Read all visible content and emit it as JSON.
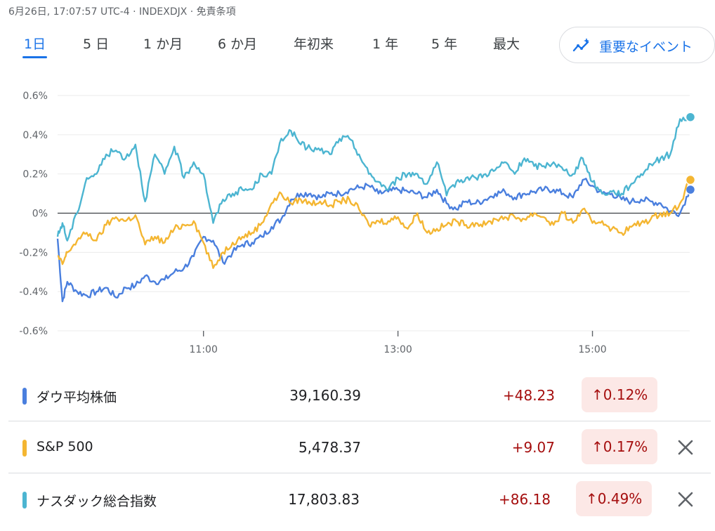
{
  "header": {
    "text": "6月26日, 17:07:57 UTC-4 · INDEXDJX · 免責条項"
  },
  "tabs": [
    {
      "label": "1日",
      "active": true
    },
    {
      "label": "5 日"
    },
    {
      "label": "1 か月"
    },
    {
      "label": "6 か月"
    },
    {
      "label": "年初来"
    },
    {
      "label": "1 年"
    },
    {
      "label": "5 年"
    },
    {
      "label": "最大"
    }
  ],
  "events_button": {
    "label": "重要なイベント",
    "icon": "sparkle-trend-icon"
  },
  "chart_data": {
    "type": "line",
    "y_ticks": [
      "0.6%",
      "0.4%",
      "0.2%",
      "0%",
      "-0.2%",
      "-0.4%",
      "-0.6%"
    ],
    "y_tick_values": [
      0.6,
      0.4,
      0.2,
      0,
      -0.2,
      -0.4,
      -0.6
    ],
    "x_ticks": [
      "11:00",
      "13:00",
      "15:00"
    ],
    "x_tick_values": [
      11,
      13,
      15
    ],
    "xlim": [
      9.5,
      16.0
    ],
    "ylim": [
      -0.6,
      0.6
    ],
    "grid": true,
    "series": [
      {
        "name": "ダウ平均株価",
        "color": "#4a7fde",
        "x": [
          9.5,
          9.55,
          9.6,
          9.7,
          9.8,
          9.9,
          10.0,
          10.1,
          10.2,
          10.3,
          10.4,
          10.5,
          10.6,
          10.7,
          10.8,
          10.9,
          11.0,
          11.1,
          11.2,
          11.3,
          11.4,
          11.5,
          11.6,
          11.7,
          11.8,
          11.9,
          12.0,
          12.1,
          12.2,
          12.3,
          12.4,
          12.5,
          12.6,
          12.7,
          12.8,
          12.9,
          13.0,
          13.1,
          13.2,
          13.3,
          13.4,
          13.5,
          13.6,
          13.7,
          13.8,
          13.9,
          14.0,
          14.1,
          14.2,
          14.3,
          14.4,
          14.5,
          14.6,
          14.7,
          14.8,
          14.9,
          15.0,
          15.1,
          15.2,
          15.3,
          15.4,
          15.5,
          15.6,
          15.7,
          15.8,
          15.9,
          16.0
        ],
        "y": [
          -0.13,
          -0.45,
          -0.35,
          -0.4,
          -0.42,
          -0.4,
          -0.38,
          -0.43,
          -0.38,
          -0.37,
          -0.32,
          -0.35,
          -0.34,
          -0.3,
          -0.28,
          -0.22,
          -0.12,
          -0.14,
          -0.25,
          -0.2,
          -0.16,
          -0.15,
          -0.12,
          -0.07,
          -0.03,
          0.07,
          0.1,
          0.1,
          0.08,
          0.1,
          0.1,
          0.12,
          0.13,
          0.14,
          0.1,
          0.11,
          0.12,
          0.11,
          0.1,
          0.08,
          0.12,
          0.05,
          0.02,
          0.06,
          0.05,
          0.07,
          0.1,
          0.11,
          0.08,
          0.1,
          0.11,
          0.12,
          0.12,
          0.1,
          0.08,
          0.17,
          0.14,
          0.1,
          0.1,
          0.07,
          0.06,
          0.07,
          0.06,
          0.05,
          0.01,
          0.0,
          0.12
        ]
      },
      {
        "name": "S&P 500",
        "color": "#f4b632",
        "x": [
          9.5,
          9.55,
          9.6,
          9.7,
          9.8,
          9.9,
          10.0,
          10.1,
          10.2,
          10.3,
          10.4,
          10.5,
          10.6,
          10.7,
          10.8,
          10.9,
          11.0,
          11.1,
          11.2,
          11.3,
          11.4,
          11.5,
          11.6,
          11.7,
          11.8,
          11.9,
          12.0,
          12.1,
          12.2,
          12.3,
          12.4,
          12.5,
          12.6,
          12.7,
          12.8,
          12.9,
          13.0,
          13.1,
          13.2,
          13.3,
          13.4,
          13.5,
          13.6,
          13.7,
          13.8,
          13.9,
          14.0,
          14.1,
          14.2,
          14.3,
          14.4,
          14.5,
          14.6,
          14.7,
          14.8,
          14.9,
          15.0,
          15.1,
          15.2,
          15.3,
          15.4,
          15.5,
          15.6,
          15.7,
          15.8,
          15.9,
          16.0
        ],
        "y": [
          -0.22,
          -0.26,
          -0.2,
          -0.14,
          -0.1,
          -0.14,
          -0.06,
          -0.02,
          -0.04,
          -0.01,
          -0.16,
          -0.12,
          -0.15,
          -0.08,
          -0.06,
          -0.04,
          -0.15,
          -0.28,
          -0.2,
          -0.15,
          -0.12,
          -0.1,
          -0.05,
          0.05,
          0.1,
          0.05,
          0.07,
          0.05,
          0.06,
          0.04,
          0.06,
          0.07,
          0.02,
          -0.06,
          -0.04,
          -0.04,
          -0.02,
          -0.08,
          0.0,
          -0.1,
          -0.08,
          -0.06,
          -0.04,
          -0.06,
          -0.05,
          -0.06,
          -0.03,
          -0.02,
          -0.02,
          -0.03,
          0.0,
          -0.02,
          -0.06,
          0.0,
          -0.05,
          0.02,
          -0.05,
          -0.04,
          -0.08,
          -0.1,
          -0.07,
          -0.05,
          -0.03,
          0.0,
          0.0,
          0.05,
          0.17
        ]
      },
      {
        "name": "ナスダック総合指数",
        "color": "#4cb5d1",
        "x": [
          9.5,
          9.55,
          9.6,
          9.7,
          9.8,
          9.9,
          10.0,
          10.1,
          10.2,
          10.3,
          10.4,
          10.5,
          10.6,
          10.7,
          10.8,
          10.9,
          11.0,
          11.1,
          11.2,
          11.3,
          11.4,
          11.5,
          11.6,
          11.7,
          11.8,
          11.9,
          12.0,
          12.1,
          12.2,
          12.3,
          12.4,
          12.5,
          12.6,
          12.7,
          12.8,
          12.9,
          13.0,
          13.1,
          13.2,
          13.3,
          13.4,
          13.5,
          13.6,
          13.7,
          13.8,
          13.9,
          14.0,
          14.1,
          14.2,
          14.3,
          14.4,
          14.5,
          14.6,
          14.7,
          14.8,
          14.9,
          15.0,
          15.1,
          15.2,
          15.3,
          15.4,
          15.5,
          15.6,
          15.7,
          15.8,
          15.9,
          16.0
        ],
        "y": [
          -0.12,
          -0.05,
          -0.14,
          0.0,
          0.18,
          0.2,
          0.3,
          0.32,
          0.28,
          0.35,
          0.06,
          0.3,
          0.2,
          0.34,
          0.18,
          0.26,
          0.2,
          -0.05,
          0.07,
          0.1,
          0.12,
          0.12,
          0.2,
          0.2,
          0.38,
          0.42,
          0.35,
          0.33,
          0.32,
          0.3,
          0.38,
          0.38,
          0.3,
          0.2,
          0.16,
          0.12,
          0.18,
          0.2,
          0.2,
          0.15,
          0.26,
          0.09,
          0.16,
          0.18,
          0.18,
          0.2,
          0.22,
          0.26,
          0.2,
          0.28,
          0.24,
          0.24,
          0.26,
          0.22,
          0.2,
          0.28,
          0.16,
          0.1,
          0.11,
          0.1,
          0.15,
          0.2,
          0.25,
          0.28,
          0.3,
          0.48,
          0.49
        ]
      }
    ]
  },
  "table": [
    {
      "name": "ダウ平均株価",
      "color": "#4a7fde",
      "price": "39,160.39",
      "change": "+48.23",
      "percent": "↑0.12%",
      "removable": false
    },
    {
      "name": "S&P 500",
      "color": "#f4b632",
      "price": "5,478.37",
      "change": "+9.07",
      "percent": "↑0.17%",
      "removable": true
    },
    {
      "name": "ナスダック総合指数",
      "color": "#4cb5d1",
      "price": "17,803.83",
      "change": "+86.18",
      "percent": "↑0.49%",
      "removable": true
    }
  ]
}
